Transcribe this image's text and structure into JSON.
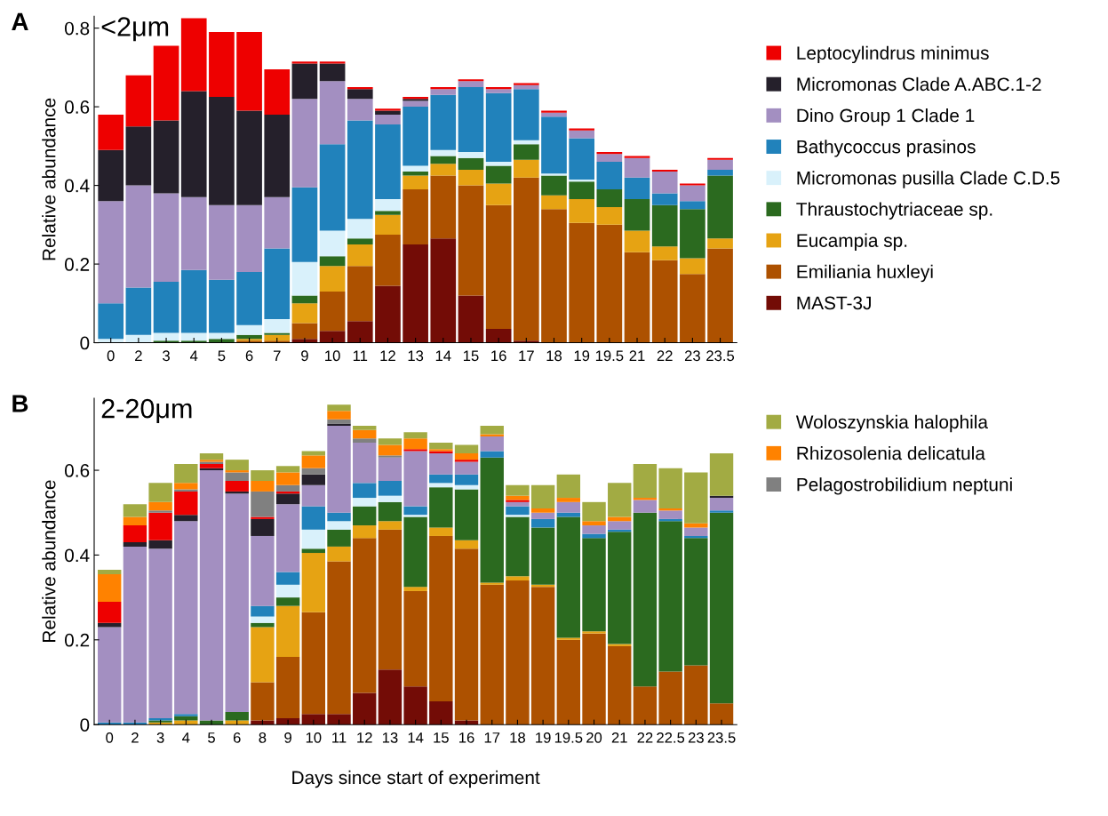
{
  "chart_data": [
    {
      "type": "bar",
      "stacked": true,
      "title": "<2μm",
      "ylabel": "Relative abundance",
      "annotations": [
        "A"
      ],
      "legend": "right",
      "ylim": [
        0,
        0.83
      ],
      "yticks": [
        0,
        0.2,
        0.4,
        0.6,
        0.8
      ],
      "categories": [
        "0",
        "2",
        "3",
        "4",
        "5",
        "6",
        "7",
        "9",
        "10",
        "11",
        "12",
        "13",
        "14",
        "15",
        "16",
        "17",
        "18",
        "19",
        "19.5",
        "21",
        "22",
        "23",
        "23.5"
      ],
      "series": [
        {
          "name": "MAST-3J",
          "color": "#730c06",
          "values": [
            0,
            0,
            0,
            0,
            0,
            0,
            0,
            0.01,
            0.03,
            0.055,
            0.145,
            0.25,
            0.265,
            0.12,
            0.035,
            0.005,
            0,
            0,
            0,
            0,
            0,
            0,
            0
          ]
        },
        {
          "name": "Emiliania huxleyi",
          "color": "#ad5100",
          "values": [
            0,
            0,
            0,
            0,
            0,
            0.005,
            0.005,
            0.04,
            0.1,
            0.14,
            0.13,
            0.14,
            0.16,
            0.28,
            0.315,
            0.415,
            0.34,
            0.305,
            0.3,
            0.23,
            0.21,
            0.175,
            0.24
          ]
        },
        {
          "name": "Eucampia sp.",
          "color": "#e6a313",
          "values": [
            0,
            0,
            0,
            0,
            0,
            0.005,
            0.015,
            0.05,
            0.065,
            0.055,
            0.05,
            0.035,
            0.03,
            0.04,
            0.055,
            0.045,
            0.035,
            0.06,
            0.045,
            0.055,
            0.035,
            0.04,
            0.025
          ]
        },
        {
          "name": "Thraustochytriaceae sp.",
          "color": "#2b6a1f",
          "values": [
            0,
            0,
            0.005,
            0.005,
            0.01,
            0.01,
            0.005,
            0.02,
            0.025,
            0.015,
            0.01,
            0.01,
            0.02,
            0.03,
            0.045,
            0.04,
            0.05,
            0.045,
            0.045,
            0.08,
            0.105,
            0.125,
            0.16
          ]
        },
        {
          "name": "Micromonas pusilla Clade C.D.5",
          "color": "#d9f1fb",
          "values": [
            0.01,
            0.02,
            0.02,
            0.02,
            0.015,
            0.025,
            0.035,
            0.085,
            0.065,
            0.05,
            0.03,
            0.015,
            0.015,
            0.015,
            0.01,
            0.01,
            0.005,
            0.005,
            0,
            0,
            0,
            0,
            0
          ]
        },
        {
          "name": "Bathycoccus prasinos",
          "color": "#2182bb",
          "values": [
            0.09,
            0.12,
            0.13,
            0.16,
            0.135,
            0.135,
            0.18,
            0.19,
            0.22,
            0.25,
            0.19,
            0.15,
            0.14,
            0.165,
            0.175,
            0.13,
            0.145,
            0.105,
            0.07,
            0.055,
            0.03,
            0.02,
            0.015
          ]
        },
        {
          "name": "Dino Group 1 Clade 1",
          "color": "#a38fc1",
          "values": [
            0.26,
            0.26,
            0.225,
            0.185,
            0.19,
            0.17,
            0.13,
            0.225,
            0.16,
            0.055,
            0.025,
            0.015,
            0.015,
            0.015,
            0.01,
            0.01,
            0.01,
            0.02,
            0.02,
            0.05,
            0.055,
            0.04,
            0.025
          ]
        },
        {
          "name": "Micromonas Clade A.ABC.1-2",
          "color": "#25202b",
          "values": [
            0.13,
            0.15,
            0.185,
            0.27,
            0.275,
            0.24,
            0.21,
            0.09,
            0.045,
            0.025,
            0.01,
            0.005,
            0,
            0,
            0,
            0,
            0,
            0,
            0,
            0,
            0,
            0,
            0
          ]
        },
        {
          "name": "Leptocylindrus minimus",
          "color": "#ee0000",
          "values": [
            0.09,
            0.13,
            0.19,
            0.185,
            0.165,
            0.2,
            0.115,
            0.005,
            0.005,
            0.005,
            0.005,
            0.005,
            0.005,
            0.005,
            0.005,
            0.005,
            0.005,
            0.005,
            0.005,
            0.005,
            0.005,
            0.005,
            0.005
          ]
        }
      ]
    },
    {
      "type": "bar",
      "stacked": true,
      "title": "2-20μm",
      "ylabel": "Relative abundance",
      "xlabel": "Days since start of experiment",
      "annotations": [
        "B"
      ],
      "legend": "top right",
      "ylim": [
        0,
        0.77
      ],
      "yticks": [
        0,
        0.2,
        0.4,
        0.6
      ],
      "categories": [
        "0",
        "2",
        "3",
        "4",
        "5",
        "6",
        "8",
        "9",
        "10",
        "11",
        "12",
        "13",
        "14",
        "15",
        "16",
        "17",
        "18",
        "19",
        "19.5",
        "20",
        "21",
        "22",
        "22.5",
        "23",
        "23.5"
      ],
      "series": [
        {
          "color": "#730c06",
          "values": [
            0,
            0,
            0,
            0,
            0,
            0,
            0.01,
            0.015,
            0.025,
            0.025,
            0.075,
            0.13,
            0.09,
            0.055,
            0.01,
            0,
            0,
            0,
            0,
            0,
            0,
            0,
            0,
            0,
            0
          ]
        },
        {
          "color": "#ad5100",
          "values": [
            0,
            0,
            0,
            0,
            0,
            0,
            0.09,
            0.145,
            0.24,
            0.36,
            0.365,
            0.33,
            0.225,
            0.39,
            0.405,
            0.33,
            0.34,
            0.325,
            0.2,
            0.215,
            0.185,
            0.09,
            0.125,
            0.14,
            0.05
          ]
        },
        {
          "color": "#e6a313",
          "values": [
            0,
            0,
            0.005,
            0.01,
            0,
            0.01,
            0.13,
            0.12,
            0.14,
            0.035,
            0.03,
            0.02,
            0.01,
            0.02,
            0.02,
            0.005,
            0.01,
            0.005,
            0.005,
            0.005,
            0.005,
            0,
            0,
            0,
            0
          ]
        },
        {
          "color": "#2b6a1f",
          "values": [
            0,
            0,
            0.005,
            0.01,
            0.01,
            0.02,
            0.01,
            0.02,
            0.01,
            0.04,
            0.045,
            0.045,
            0.165,
            0.095,
            0.12,
            0.295,
            0.14,
            0.135,
            0.285,
            0.22,
            0.265,
            0.41,
            0.355,
            0.3,
            0.45
          ]
        },
        {
          "color": "#d9f1fb",
          "values": [
            0,
            0,
            0,
            0,
            0,
            0,
            0.015,
            0.03,
            0.045,
            0.02,
            0.02,
            0.015,
            0.005,
            0.01,
            0.01,
            0,
            0.005,
            0,
            0,
            0,
            0,
            0,
            0,
            0,
            0
          ]
        },
        {
          "color": "#2182bb",
          "values": [
            0.005,
            0.005,
            0.005,
            0.005,
            0,
            0,
            0.025,
            0.03,
            0.055,
            0.02,
            0.035,
            0.035,
            0.02,
            0.02,
            0.025,
            0.015,
            0.02,
            0.02,
            0.01,
            0.01,
            0.005,
            0,
            0.005,
            0.005,
            0.005
          ]
        },
        {
          "color": "#a38fc1",
          "values": [
            0.225,
            0.415,
            0.4,
            0.455,
            0.59,
            0.515,
            0.165,
            0.16,
            0.05,
            0.205,
            0.095,
            0.055,
            0.13,
            0.05,
            0.03,
            0.035,
            0.01,
            0.015,
            0.025,
            0.02,
            0.02,
            0.03,
            0.02,
            0.02,
            0.03
          ]
        },
        {
          "color": "#25202b",
          "values": [
            0.01,
            0.01,
            0.02,
            0.015,
            0.005,
            0.005,
            0.04,
            0.025,
            0.025,
            0.005,
            0,
            0,
            0,
            0,
            0,
            0,
            0,
            0,
            0,
            0,
            0,
            0,
            0,
            0,
            0.005
          ]
        },
        {
          "color": "#ee0000",
          "values": [
            0.05,
            0.04,
            0.065,
            0.055,
            0.01,
            0.025,
            0.005,
            0.005,
            0,
            0,
            0,
            0,
            0.005,
            0.005,
            0.005,
            0,
            0.005,
            0,
            0,
            0,
            0,
            0,
            0,
            0,
            0
          ]
        },
        {
          "name": "Pelagostrobilidium neptuni",
          "color": "#808080",
          "values": [
            0,
            0,
            0.005,
            0.005,
            0.005,
            0.02,
            0.06,
            0.015,
            0.015,
            0.01,
            0.01,
            0.005,
            0,
            0,
            0,
            0,
            0,
            0,
            0,
            0,
            0,
            0,
            0,
            0,
            0
          ]
        },
        {
          "name": "Rhizosolenia delicatula",
          "color": "#ff8200",
          "values": [
            0.065,
            0.02,
            0.02,
            0.015,
            0.005,
            0.005,
            0.025,
            0.03,
            0.03,
            0.02,
            0.02,
            0.025,
            0.025,
            0.005,
            0.015,
            0.005,
            0.01,
            0.01,
            0.01,
            0.01,
            0.01,
            0.005,
            0.005,
            0.01,
            0
          ]
        },
        {
          "name": "Woloszynskia halophila",
          "color": "#a2ab43",
          "values": [
            0.01,
            0.03,
            0.045,
            0.045,
            0.015,
            0.025,
            0.025,
            0.015,
            0.01,
            0.015,
            0.01,
            0.015,
            0.015,
            0.015,
            0.02,
            0.02,
            0.025,
            0.055,
            0.055,
            0.045,
            0.08,
            0.08,
            0.095,
            0.12,
            0.1
          ]
        }
      ]
    }
  ]
}
